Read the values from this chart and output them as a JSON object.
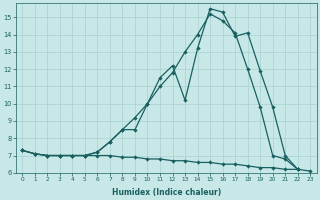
{
  "xlabel": "Humidex (Indice chaleur)",
  "bg_color": "#c8e8e8",
  "grid_color": "#a8d0d0",
  "line_color": "#1a6060",
  "xlim": [
    -0.5,
    23.5
  ],
  "ylim": [
    6,
    15.8
  ],
  "yticks": [
    6,
    7,
    8,
    9,
    10,
    11,
    12,
    13,
    14,
    15
  ],
  "xticks": [
    0,
    1,
    2,
    3,
    4,
    5,
    6,
    7,
    8,
    9,
    10,
    11,
    12,
    13,
    14,
    15,
    16,
    17,
    18,
    19,
    20,
    21,
    22,
    23
  ],
  "line1_x": [
    0,
    1,
    2,
    3,
    4,
    5,
    6,
    7,
    8,
    9,
    10,
    11,
    12,
    13,
    14,
    15,
    16,
    17,
    18,
    19,
    20,
    21,
    22,
    23
  ],
  "line1_y": [
    7.3,
    7.1,
    7.0,
    7.0,
    7.0,
    7.0,
    7.0,
    7.0,
    6.9,
    6.9,
    6.8,
    6.8,
    6.7,
    6.7,
    6.6,
    6.6,
    6.5,
    6.5,
    6.4,
    6.3,
    6.3,
    6.2,
    6.2,
    6.1
  ],
  "line2_x": [
    0,
    1,
    2,
    3,
    4,
    5,
    6,
    7,
    8,
    9,
    10,
    11,
    12,
    13,
    14,
    15,
    16,
    17,
    18,
    19,
    20,
    21,
    22
  ],
  "line2_y": [
    7.3,
    7.1,
    7.0,
    7.0,
    7.0,
    7.0,
    7.2,
    7.8,
    8.5,
    9.2,
    10.0,
    11.0,
    11.8,
    13.0,
    14.0,
    15.2,
    14.8,
    14.1,
    12.0,
    9.8,
    7.0,
    6.8,
    6.2
  ],
  "line3_x": [
    0,
    1,
    2,
    3,
    4,
    5,
    6,
    7,
    8,
    9,
    10,
    11,
    12,
    13,
    14,
    15,
    16,
    17,
    18,
    19,
    20,
    21,
    22
  ],
  "line3_y": [
    7.3,
    7.1,
    7.0,
    7.0,
    7.0,
    7.0,
    7.2,
    7.8,
    8.5,
    8.5,
    10.0,
    11.5,
    12.2,
    10.2,
    13.2,
    15.5,
    15.3,
    13.9,
    14.1,
    11.9,
    9.8,
    7.0,
    6.2
  ]
}
